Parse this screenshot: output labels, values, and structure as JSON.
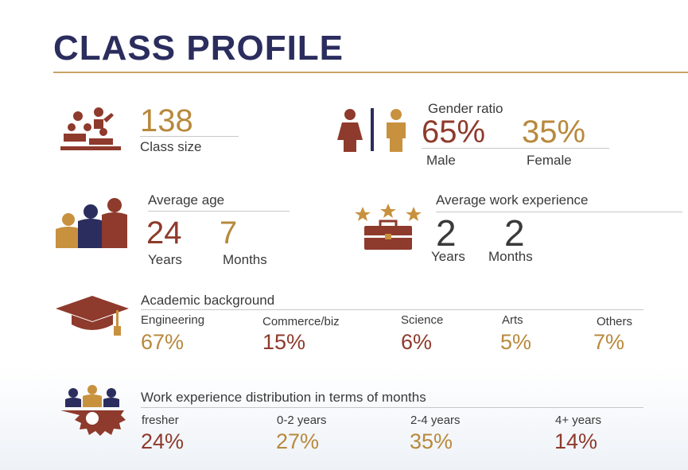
{
  "title": "CLASS PROFILE",
  "class_size": {
    "value": "138",
    "label": "Class size"
  },
  "gender": {
    "heading": "Gender ratio",
    "male_value": "65%",
    "male_label": "Male",
    "female_value": "35%",
    "female_label": "Female"
  },
  "age": {
    "heading": "Average age",
    "years_value": "24",
    "years_label": "Years",
    "months_value": "7",
    "months_label": "Months"
  },
  "work_experience": {
    "heading": "Average work experience",
    "years_value": "2",
    "years_label": "Years",
    "months_value": "2",
    "months_label": "Months"
  },
  "academic": {
    "heading": "Academic background",
    "items": [
      {
        "label": "Engineering",
        "value": "67%"
      },
      {
        "label": "Commerce/biz",
        "value": "15%"
      },
      {
        "label": "Science",
        "value": "6%"
      },
      {
        "label": "Arts",
        "value": "5%"
      },
      {
        "label": "Others",
        "value": "7%"
      }
    ]
  },
  "distribution": {
    "heading": "Work experience distribution in terms of months",
    "items": [
      {
        "label": "fresher",
        "value": "24%"
      },
      {
        "label": "0-2 years",
        "value": "27%"
      },
      {
        "label": "2-4 years",
        "value": "35%"
      },
      {
        "label": "4+ years",
        "value": "14%"
      }
    ]
  },
  "colors": {
    "navy": "#2b2d5e",
    "gold": "#b8893c",
    "maroon": "#8e3a2c",
    "rule": "#c8a468"
  },
  "icons": [
    "classroom-icon",
    "gender-icon",
    "family-icon",
    "briefcase-stars-icon",
    "graduation-cap-icon",
    "team-gear-icon"
  ]
}
